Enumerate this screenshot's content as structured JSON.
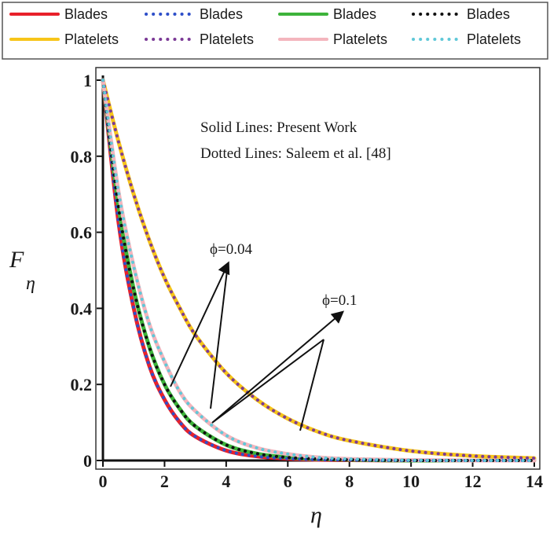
{
  "chart_data": {
    "type": "line",
    "xlabel": "η",
    "ylabel": "F",
    "ylabel_sub": "η",
    "xlim": [
      0,
      14
    ],
    "ylim": [
      0,
      1
    ],
    "x_ticks": [
      "0",
      "2",
      "4",
      "6",
      "8",
      "10",
      "12",
      "14"
    ],
    "y_ticks": [
      "0",
      "0.2",
      "0.4",
      "0.6",
      "0.8",
      "1"
    ],
    "grid": false,
    "legend_position": "top",
    "annotations": [
      {
        "text": "Solid Lines: Present Work"
      },
      {
        "text": "Dotted Lines: Saleem et al. [48]"
      },
      {
        "text": "ϕ=0.04"
      },
      {
        "text": "ϕ=0.1"
      }
    ],
    "series": [
      {
        "name": "Blades",
        "style": "solid",
        "color": "#e8202a",
        "x": [
          0,
          0.5,
          1,
          1.5,
          2,
          2.5,
          3,
          4,
          5,
          6,
          7,
          8,
          10,
          12,
          14
        ],
        "values": [
          1.0,
          0.63,
          0.4,
          0.25,
          0.16,
          0.1,
          0.063,
          0.026,
          0.011,
          0.005,
          0.002,
          0.001,
          0.0,
          0.0,
          0.0
        ]
      },
      {
        "name": "Platelets",
        "style": "solid",
        "color": "#f7c519",
        "x": [
          0,
          0.5,
          1,
          1.5,
          2,
          2.5,
          3,
          4,
          5,
          6,
          7,
          8,
          10,
          12,
          14
        ],
        "values": [
          1.0,
          0.84,
          0.7,
          0.58,
          0.48,
          0.4,
          0.33,
          0.23,
          0.16,
          0.11,
          0.075,
          0.052,
          0.025,
          0.012,
          0.006
        ]
      },
      {
        "name": "Blades",
        "style": "dotted",
        "color": "#2e4fc9",
        "x": [
          0,
          0.5,
          1,
          1.5,
          2,
          2.5,
          3,
          4,
          5,
          6,
          7,
          8,
          10,
          12,
          14
        ],
        "values": [
          1.0,
          0.63,
          0.4,
          0.25,
          0.16,
          0.1,
          0.063,
          0.026,
          0.011,
          0.005,
          0.002,
          0.001,
          0.0,
          0.0,
          0.0
        ]
      },
      {
        "name": "Platelets",
        "style": "dotted",
        "color": "#7b3a96",
        "x": [
          0,
          0.5,
          1,
          1.5,
          2,
          2.5,
          3,
          4,
          5,
          6,
          7,
          8,
          10,
          12,
          14
        ],
        "values": [
          1.0,
          0.84,
          0.7,
          0.58,
          0.48,
          0.4,
          0.33,
          0.23,
          0.16,
          0.11,
          0.075,
          0.052,
          0.025,
          0.012,
          0.006
        ]
      },
      {
        "name": "Blades",
        "style": "solid",
        "color": "#3db33a",
        "x": [
          0,
          0.5,
          1,
          1.5,
          2,
          2.5,
          3,
          4,
          5,
          6,
          7,
          8,
          10,
          12,
          14
        ],
        "values": [
          1.0,
          0.67,
          0.45,
          0.3,
          0.2,
          0.135,
          0.09,
          0.041,
          0.018,
          0.008,
          0.004,
          0.002,
          0.0,
          0.0,
          0.0
        ]
      },
      {
        "name": "Platelets",
        "style": "solid",
        "color": "#f4b5bd",
        "x": [
          0,
          0.5,
          1,
          1.5,
          2,
          2.5,
          3,
          4,
          5,
          6,
          7,
          8,
          10,
          12,
          14
        ],
        "values": [
          1.0,
          0.71,
          0.51,
          0.36,
          0.26,
          0.18,
          0.13,
          0.066,
          0.033,
          0.017,
          0.008,
          0.004,
          0.001,
          0.0,
          0.0
        ]
      },
      {
        "name": "Blades",
        "style": "dotted",
        "color": "#111111",
        "x": [
          0,
          0.5,
          1,
          1.5,
          2,
          2.5,
          3,
          4,
          5,
          6,
          7,
          8,
          10,
          12,
          14
        ],
        "values": [
          1.0,
          0.67,
          0.45,
          0.3,
          0.2,
          0.135,
          0.09,
          0.041,
          0.018,
          0.008,
          0.004,
          0.002,
          0.0,
          0.0,
          0.0
        ]
      },
      {
        "name": "Platelets",
        "style": "dotted",
        "color": "#5fc8d8",
        "x": [
          0,
          0.5,
          1,
          1.5,
          2,
          2.5,
          3,
          4,
          5,
          6,
          7,
          8,
          10,
          12,
          14
        ],
        "values": [
          1.0,
          0.71,
          0.51,
          0.36,
          0.26,
          0.18,
          0.13,
          0.066,
          0.033,
          0.017,
          0.008,
          0.004,
          0.001,
          0.0,
          0.0
        ]
      }
    ]
  }
}
